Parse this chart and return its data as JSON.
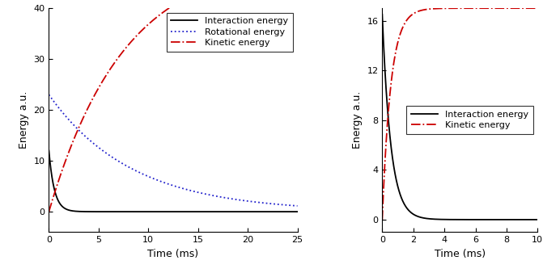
{
  "left_plot": {
    "xlim": [
      0,
      25
    ],
    "ylim": [
      -4,
      40
    ],
    "xlabel": "Time (ms)",
    "ylabel": "Energy a.u.",
    "xticks": [
      0,
      5,
      10,
      15,
      20,
      25
    ],
    "yticks": [
      0,
      10,
      20,
      30,
      40
    ],
    "interaction_color": "#000000",
    "interaction_label": "Interaction energy",
    "rotational_color": "#2222cc",
    "rotational_label": "Rotational energy",
    "kinetic_color": "#cc0000",
    "kinetic_label": "Kinetic energy",
    "interaction_peak": 12.0,
    "interaction_decay": 0.55,
    "rotational_start": 23.0,
    "rotational_decay": 0.12,
    "kinetic_asymptote": 50.0,
    "kinetic_rise": 7.5
  },
  "right_plot": {
    "xlim": [
      0,
      10
    ],
    "ylim": [
      -1,
      17
    ],
    "xlabel": "Time (ms)",
    "ylabel": "Energy a.u.",
    "xticks": [
      0,
      2,
      4,
      6,
      8,
      10
    ],
    "yticks": [
      0,
      4,
      8,
      12,
      16
    ],
    "interaction_color": "#000000",
    "interaction_label": "Interaction energy",
    "kinetic_color": "#cc0000",
    "kinetic_label": "Kinetic energy",
    "interaction_peak": 16.5,
    "interaction_decay": 0.55,
    "kinetic_asymptote": 17.0,
    "kinetic_rise": 0.55
  },
  "background_color": "#ffffff",
  "font_size": 8,
  "label_font_size": 9,
  "tick_font_size": 8,
  "line_width": 1.3
}
